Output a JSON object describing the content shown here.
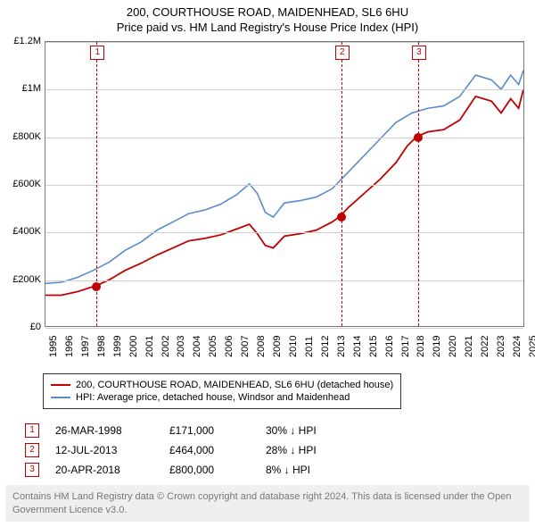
{
  "title_line1": "200, COURTHOUSE ROAD, MAIDENHEAD, SL6 6HU",
  "title_line2": "Price paid vs. HM Land Registry's House Price Index (HPI)",
  "chart": {
    "type": "line",
    "background_color": "#ffffff",
    "grid_color": "#d0d0d0",
    "axis_color": "#777777",
    "font_size_axis": 11,
    "x_min": 1995,
    "x_max": 2025,
    "x_ticks": [
      1995,
      1996,
      1997,
      1998,
      1999,
      2000,
      2001,
      2002,
      2003,
      2004,
      2005,
      2006,
      2007,
      2008,
      2009,
      2010,
      2011,
      2012,
      2013,
      2014,
      2015,
      2016,
      2017,
      2018,
      2019,
      2020,
      2021,
      2022,
      2023,
      2024,
      2025
    ],
    "y_min": 0,
    "y_max": 1200000,
    "y_ticks": [
      {
        "v": 0,
        "label": "£0"
      },
      {
        "v": 200000,
        "label": "£200K"
      },
      {
        "v": 400000,
        "label": "£400K"
      },
      {
        "v": 600000,
        "label": "£600K"
      },
      {
        "v": 800000,
        "label": "£800K"
      },
      {
        "v": 1000000,
        "label": "£1M"
      },
      {
        "v": 1200000,
        "label": "£1.2M"
      }
    ],
    "series": [
      {
        "name": "200, COURTHOUSE ROAD, MAIDENHEAD, SL6 6HU (detached house)",
        "color": "#c00000",
        "line_width": 1.8,
        "points": [
          [
            1995.0,
            130000
          ],
          [
            1996.0,
            130000
          ],
          [
            1997.0,
            145000
          ],
          [
            1998.2,
            171000
          ],
          [
            1999.0,
            195000
          ],
          [
            2000.0,
            235000
          ],
          [
            2001.0,
            265000
          ],
          [
            2002.0,
            300000
          ],
          [
            2003.0,
            330000
          ],
          [
            2004.0,
            360000
          ],
          [
            2005.0,
            370000
          ],
          [
            2006.0,
            385000
          ],
          [
            2007.0,
            410000
          ],
          [
            2007.8,
            430000
          ],
          [
            2008.3,
            390000
          ],
          [
            2008.8,
            340000
          ],
          [
            2009.3,
            330000
          ],
          [
            2010.0,
            380000
          ],
          [
            2011.0,
            390000
          ],
          [
            2012.0,
            405000
          ],
          [
            2013.0,
            440000
          ],
          [
            2013.5,
            464000
          ],
          [
            2014.0,
            500000
          ],
          [
            2015.0,
            560000
          ],
          [
            2016.0,
            620000
          ],
          [
            2017.0,
            690000
          ],
          [
            2017.7,
            760000
          ],
          [
            2018.3,
            800000
          ],
          [
            2019.0,
            820000
          ],
          [
            2020.0,
            830000
          ],
          [
            2021.0,
            870000
          ],
          [
            2022.0,
            970000
          ],
          [
            2023.0,
            950000
          ],
          [
            2023.6,
            900000
          ],
          [
            2024.2,
            960000
          ],
          [
            2024.7,
            920000
          ],
          [
            2025.0,
            1000000
          ]
        ]
      },
      {
        "name": "HPI: Average price, detached house, Windsor and Maidenhead",
        "color": "#5b8bc9",
        "line_width": 1.6,
        "points": [
          [
            1995.0,
            180000
          ],
          [
            1996.0,
            185000
          ],
          [
            1997.0,
            205000
          ],
          [
            1998.0,
            235000
          ],
          [
            1999.0,
            270000
          ],
          [
            2000.0,
            320000
          ],
          [
            2001.0,
            355000
          ],
          [
            2002.0,
            405000
          ],
          [
            2003.0,
            440000
          ],
          [
            2004.0,
            475000
          ],
          [
            2005.0,
            490000
          ],
          [
            2006.0,
            515000
          ],
          [
            2007.0,
            555000
          ],
          [
            2007.8,
            600000
          ],
          [
            2008.3,
            560000
          ],
          [
            2008.8,
            480000
          ],
          [
            2009.3,
            460000
          ],
          [
            2010.0,
            520000
          ],
          [
            2011.0,
            530000
          ],
          [
            2012.0,
            545000
          ],
          [
            2013.0,
            580000
          ],
          [
            2014.0,
            650000
          ],
          [
            2015.0,
            720000
          ],
          [
            2016.0,
            790000
          ],
          [
            2017.0,
            860000
          ],
          [
            2018.0,
            900000
          ],
          [
            2019.0,
            920000
          ],
          [
            2020.0,
            930000
          ],
          [
            2021.0,
            970000
          ],
          [
            2022.0,
            1060000
          ],
          [
            2023.0,
            1040000
          ],
          [
            2023.6,
            1000000
          ],
          [
            2024.2,
            1060000
          ],
          [
            2024.7,
            1020000
          ],
          [
            2025.0,
            1080000
          ]
        ]
      }
    ],
    "sale_markers": [
      {
        "idx": "1",
        "year": 1998.2,
        "price": 171000
      },
      {
        "idx": "2",
        "year": 2013.5,
        "price": 464000
      },
      {
        "idx": "3",
        "year": 2018.3,
        "price": 800000
      }
    ]
  },
  "legend": {
    "row1_color": "#c00000",
    "row1_label": "200, COURTHOUSE ROAD, MAIDENHEAD, SL6 6HU (detached house)",
    "row2_color": "#5b8bc9",
    "row2_label": "HPI: Average price, detached house, Windsor and Maidenhead"
  },
  "sales_table": {
    "rows": [
      {
        "idx": "1",
        "date": "26-MAR-1998",
        "price": "£171,000",
        "delta": "30% ↓ HPI"
      },
      {
        "idx": "2",
        "date": "12-JUL-2013",
        "price": "£464,000",
        "delta": "28% ↓ HPI"
      },
      {
        "idx": "3",
        "date": "20-APR-2018",
        "price": "£800,000",
        "delta": "8% ↓ HPI"
      }
    ]
  },
  "attribution": "Contains HM Land Registry data © Crown copyright and database right 2024. This data is licensed under the Open Government Licence v3.0."
}
